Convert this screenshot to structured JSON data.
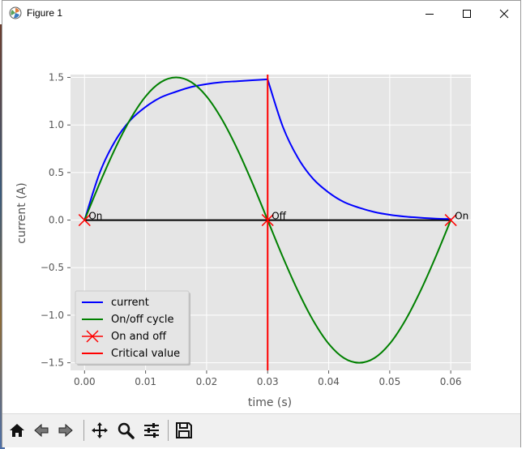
{
  "window": {
    "title": "Figure 1",
    "minimize_icon": "minimize-icon",
    "maximize_icon": "maximize-icon",
    "close_icon": "close-icon"
  },
  "toolbar": {
    "buttons": [
      {
        "name": "home",
        "icon": "home-icon"
      },
      {
        "name": "back",
        "icon": "back-arrow-icon"
      },
      {
        "name": "forward",
        "icon": "forward-arrow-icon"
      },
      {
        "name": "pan",
        "icon": "move-icon"
      },
      {
        "name": "zoom",
        "icon": "zoom-icon"
      },
      {
        "name": "configure",
        "icon": "sliders-icon"
      },
      {
        "name": "save",
        "icon": "save-icon"
      }
    ]
  },
  "chart_data": {
    "type": "line",
    "title": "",
    "xlabel": "time (s)",
    "ylabel": "current (A)",
    "xlim": [
      -0.0023,
      0.0633
    ],
    "ylim": [
      -1.58,
      1.53
    ],
    "xticks": [
      0.0,
      0.01,
      0.02,
      0.03,
      0.04,
      0.05,
      0.06
    ],
    "xtick_labels": [
      "0.00",
      "0.01",
      "0.02",
      "0.03",
      "0.04",
      "0.05",
      "0.06"
    ],
    "yticks": [
      1.5,
      1.0,
      0.5,
      0.0,
      -0.5,
      -1.0,
      -1.5
    ],
    "ytick_labels": [
      "1.5",
      "1.0",
      "0.5",
      "0.0",
      "−0.5",
      "−1.0",
      "−1.5"
    ],
    "grid": true,
    "background": "#e5e5e5",
    "legend_position": "lower-left",
    "series": [
      {
        "name": "current",
        "color": "#0000ff",
        "kind": "line",
        "x": [
          0.0,
          0.0025,
          0.005,
          0.0075,
          0.01,
          0.0125,
          0.015,
          0.0175,
          0.02,
          0.0225,
          0.025,
          0.0275,
          0.03,
          0.0325,
          0.035,
          0.0375,
          0.04,
          0.0425,
          0.045,
          0.0475,
          0.05,
          0.0525,
          0.055,
          0.0575,
          0.06
        ],
        "y": [
          0.0,
          0.5,
          0.83,
          1.05,
          1.19,
          1.29,
          1.35,
          1.4,
          1.43,
          1.45,
          1.46,
          1.47,
          1.48,
          0.98,
          0.65,
          0.43,
          0.29,
          0.19,
          0.13,
          0.085,
          0.056,
          0.037,
          0.025,
          0.016,
          0.011
        ]
      },
      {
        "name": "On/off cycle",
        "color": "#008000",
        "kind": "line",
        "x": [
          0.0,
          0.0025,
          0.005,
          0.0075,
          0.01,
          0.0125,
          0.015,
          0.0175,
          0.02,
          0.0225,
          0.025,
          0.0275,
          0.03,
          0.0325,
          0.035,
          0.0375,
          0.04,
          0.0425,
          0.045,
          0.0475,
          0.05,
          0.0525,
          0.055,
          0.0575,
          0.06
        ],
        "y": [
          0.0,
          0.39,
          0.75,
          1.06,
          1.3,
          1.45,
          1.5,
          1.45,
          1.3,
          1.06,
          0.75,
          0.39,
          0.0,
          -0.39,
          -0.75,
          -1.06,
          -1.3,
          -1.45,
          -1.5,
          -1.45,
          -1.3,
          -1.06,
          -0.75,
          -0.39,
          0.0
        ]
      },
      {
        "name": "On and off",
        "color": "#ff0000",
        "kind": "markers",
        "x": [
          0.0,
          0.03,
          0.06
        ],
        "y": [
          0.0,
          0.0,
          0.0
        ]
      },
      {
        "name": "Critical value",
        "color": "#ff0000",
        "kind": "vline",
        "x": 0.03
      }
    ],
    "zero_line": {
      "color": "#000000",
      "x": [
        0.0,
        0.06
      ],
      "y": 0.0
    },
    "annotations": [
      {
        "text": "On",
        "x": 0.0,
        "y": 0.0
      },
      {
        "text": "Off",
        "x": 0.03,
        "y": 0.0
      },
      {
        "text": "On",
        "x": 0.06,
        "y": 0.0
      }
    ]
  }
}
